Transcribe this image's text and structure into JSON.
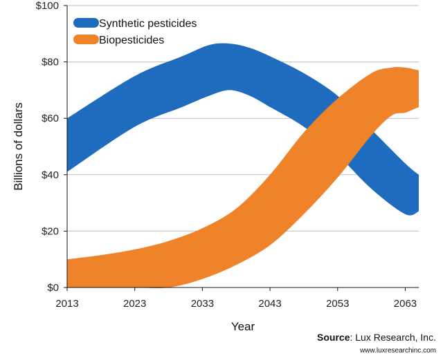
{
  "chart_data": {
    "type": "area",
    "xlabel": "Year",
    "ylabel": "Billions of dollars",
    "xlim": [
      2013,
      2065
    ],
    "ylim": [
      0,
      100
    ],
    "y_ticks": [
      "$0",
      "$20",
      "$40",
      "$60",
      "$80",
      "$100"
    ],
    "x_ticks": [
      "2013",
      "2023",
      "2033",
      "2043",
      "2053",
      "2063"
    ],
    "grid": "horizontal",
    "legend_position": "top-left",
    "series": [
      {
        "name": "Synthetic pesticides",
        "color": "#1f6bbd",
        "x": [
          2013,
          2023,
          2030,
          2034,
          2037,
          2040,
          2043,
          2048,
          2053,
          2058,
          2063,
          2065
        ],
        "upper": [
          60,
          75,
          82,
          86,
          86.5,
          85,
          82,
          76,
          68,
          56,
          44,
          40
        ],
        "lower": [
          41,
          57,
          64,
          68,
          70,
          68,
          64,
          57,
          47,
          35,
          26,
          27
        ]
      },
      {
        "name": "Biopesticides",
        "color": "#ef832a",
        "x": [
          2013,
          2018,
          2023,
          2028,
          2033,
          2038,
          2043,
          2048,
          2053,
          2058,
          2061,
          2063,
          2065
        ],
        "upper": [
          10,
          11.5,
          13.5,
          16.5,
          21,
          28,
          40,
          55,
          67,
          76,
          78,
          78,
          77
        ],
        "lower": [
          0,
          0,
          0,
          0,
          3,
          8,
          15,
          26,
          39,
          54,
          61,
          62,
          64
        ]
      }
    ]
  },
  "source": {
    "label": "Source",
    "text": ": Lux Research, Inc.",
    "url": "www.luxresearchinc.com"
  }
}
